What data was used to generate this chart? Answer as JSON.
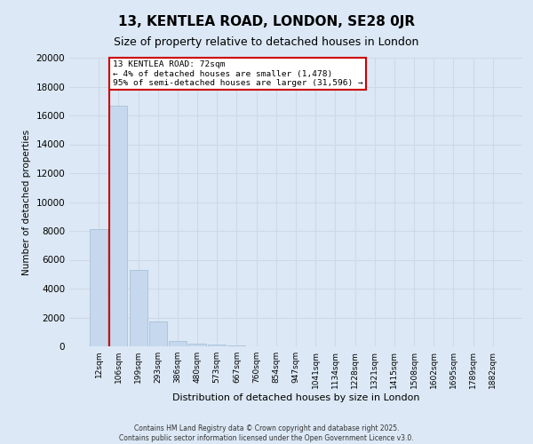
{
  "title": "13, KENTLEA ROAD, LONDON, SE28 0JR",
  "subtitle": "Size of property relative to detached houses in London",
  "xlabel": "Distribution of detached houses by size in London",
  "ylabel": "Number of detached properties",
  "categories": [
    "12sqm",
    "106sqm",
    "199sqm",
    "293sqm",
    "386sqm",
    "480sqm",
    "573sqm",
    "667sqm",
    "760sqm",
    "854sqm",
    "947sqm",
    "1041sqm",
    "1134sqm",
    "1228sqm",
    "1321sqm",
    "1415sqm",
    "1508sqm",
    "1602sqm",
    "1695sqm",
    "1789sqm",
    "1882sqm"
  ],
  "values": [
    8100,
    16700,
    5300,
    1750,
    350,
    180,
    100,
    40,
    15,
    5,
    0,
    0,
    0,
    0,
    0,
    0,
    0,
    0,
    0,
    0,
    0
  ],
  "bar_color": "#c5d8ed",
  "bar_edge_color": "#a0bcd6",
  "annotation_box_color": "#ffffff",
  "annotation_border_color": "#cc0000",
  "property_line_color": "#cc0000",
  "annotation_line1": "13 KENTLEA ROAD: 72sqm",
  "annotation_line2": "← 4% of detached houses are smaller (1,478)",
  "annotation_line3": "95% of semi-detached houses are larger (31,596) →",
  "property_bar_index": 1,
  "ylim": [
    0,
    20000
  ],
  "yticks": [
    0,
    2000,
    4000,
    6000,
    8000,
    10000,
    12000,
    14000,
    16000,
    18000,
    20000
  ],
  "grid_color": "#d0d8e8",
  "background_color": "#dce8f5",
  "footnote_line1": "Contains HM Land Registry data © Crown copyright and database right 2025.",
  "footnote_line2": "Contains public sector information licensed under the Open Government Licence v3.0."
}
